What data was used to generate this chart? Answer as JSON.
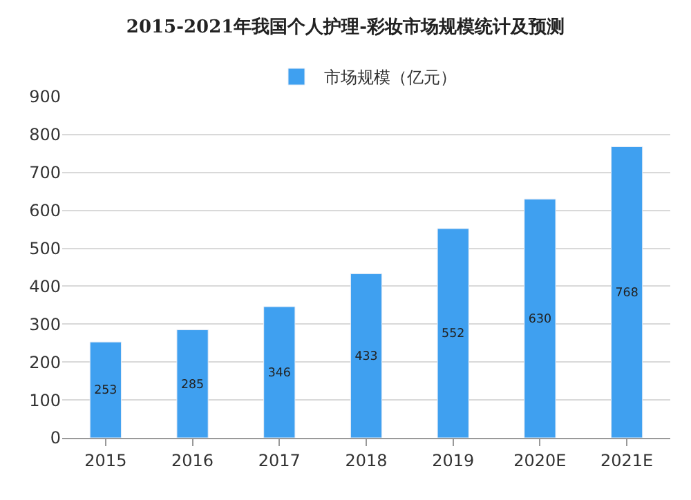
{
  "chart_data": {
    "type": "bar",
    "title": "2015-2021年我国个人护理-彩妆市场规模统计及预测",
    "categories": [
      "2015",
      "2016",
      "2017",
      "2018",
      "2019",
      "2020E",
      "2021E"
    ],
    "series": [
      {
        "name": "市场规模（亿元）",
        "color": "#3fa0f0",
        "values": [
          253,
          285,
          346,
          433,
          552,
          630,
          768
        ]
      }
    ],
    "ylim": [
      0,
      900
    ],
    "yticks": [
      0,
      100,
      200,
      300,
      400,
      500,
      600,
      700,
      800,
      900
    ],
    "grid": "y",
    "legend": "top",
    "data_labels": true
  }
}
